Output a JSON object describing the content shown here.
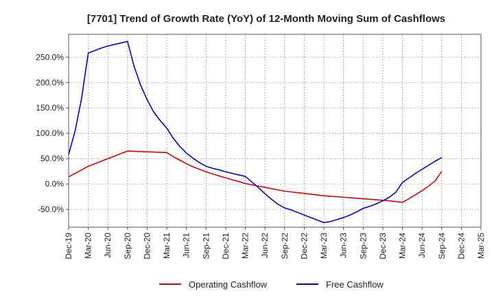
{
  "chart_data": {
    "type": "line",
    "title": "[7701]  Trend of Growth Rate (YoY) of 12-Month Moving Sum of Cashflows",
    "xlabel": "",
    "ylabel": "",
    "ylim": [
      -85,
      295
    ],
    "y_ticks": [
      -50,
      0,
      50,
      100,
      150,
      200,
      250
    ],
    "y_tick_labels": [
      "-50.0%",
      "0.0%",
      "50.0%",
      "100.0%",
      "150.0%",
      "200.0%",
      "250.0%"
    ],
    "x_tick_labels": [
      "Dec-19",
      "Mar-20",
      "Jun-20",
      "Sep-20",
      "Dec-20",
      "Mar-21",
      "Jun-21",
      "Sep-21",
      "Dec-21",
      "Mar-22",
      "Jun-22",
      "Sep-22",
      "Dec-22",
      "Mar-23",
      "Jun-23",
      "Sep-23",
      "Dec-23",
      "Mar-24",
      "Jun-24",
      "Sep-24",
      "Dec-24",
      "Mar-25"
    ],
    "grid": true,
    "legend_position": "bottom",
    "x": [
      "Dec-19",
      "Jan-20",
      "Feb-20",
      "Mar-20",
      "Apr-20",
      "May-20",
      "Jun-20",
      "Jul-20",
      "Aug-20",
      "Sep-20",
      "Oct-20",
      "Nov-20",
      "Dec-20",
      "Jan-21",
      "Feb-21",
      "Mar-21",
      "Apr-21",
      "May-21",
      "Jun-21",
      "Jul-21",
      "Aug-21",
      "Sep-21",
      "Oct-21",
      "Nov-21",
      "Dec-21",
      "Jan-22",
      "Feb-22",
      "Mar-22",
      "Apr-22",
      "May-22",
      "Jun-22",
      "Jul-22",
      "Aug-22",
      "Sep-22",
      "Oct-22",
      "Nov-22",
      "Dec-22",
      "Jan-23",
      "Feb-23",
      "Mar-23",
      "Apr-23",
      "May-23",
      "Jun-23",
      "Jul-23",
      "Aug-23",
      "Sep-23",
      "Oct-23",
      "Nov-23",
      "Dec-23",
      "Jan-24",
      "Feb-24",
      "Mar-24",
      "Apr-24",
      "May-24",
      "Jun-24",
      "Jul-24",
      "Aug-24",
      "Sep-24"
    ],
    "series": [
      {
        "name": "Operating Cashflow",
        "color": "#e00000",
        "values": [
          14,
          21,
          28,
          35,
          40,
          45,
          50,
          55,
          60,
          65,
          64.5,
          64,
          63.5,
          63,
          62.5,
          62,
          54,
          47,
          40,
          34,
          29,
          24,
          20,
          16,
          12,
          8.5,
          5,
          1,
          -1.5,
          -4,
          -6.5,
          -9,
          -11.5,
          -14,
          -15.5,
          -17,
          -18.5,
          -20,
          -21.5,
          -23,
          -24,
          -25,
          -26,
          -27,
          -28,
          -29,
          -30,
          -31,
          -32,
          -33,
          -34.5,
          -36,
          -29,
          -21,
          -13,
          -4,
          6,
          25
        ]
      },
      {
        "name": "Free Cashflow",
        "color": "#0000dd",
        "values": [
          58,
          105,
          170,
          258,
          263,
          268,
          272,
          275,
          278,
          281,
          232,
          195,
          166,
          142,
          125,
          110,
          90,
          74,
          61,
          51,
          42,
          35,
          31,
          28,
          24,
          21,
          18,
          15,
          4,
          -7,
          -19,
          -30,
          -40,
          -47,
          -51,
          -56,
          -61,
          -66,
          -71,
          -76,
          -74,
          -70,
          -66,
          -61,
          -55,
          -48,
          -44,
          -39,
          -33,
          -26,
          -16,
          3,
          12,
          21,
          29,
          37,
          45,
          52
        ]
      }
    ]
  }
}
